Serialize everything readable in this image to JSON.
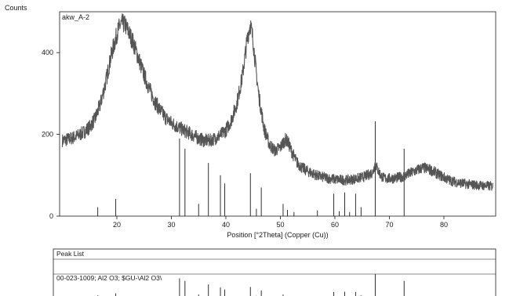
{
  "chart_data": [
    {
      "type": "line",
      "panel": "diffractogram",
      "ylabel": "Counts",
      "xlabel": "Position [°2Theta] (Copper (Cu))",
      "sample_label": "akw_A-2",
      "xlim": [
        9.5,
        89.5
      ],
      "ylim": [
        0,
        500
      ],
      "xticks": [
        20,
        30,
        40,
        50,
        60,
        70,
        80
      ],
      "yticks": [
        0,
        200,
        400
      ],
      "grid": false,
      "series": [
        {
          "values_x": [
            10,
            11,
            12,
            13,
            14,
            15,
            16,
            17,
            18,
            19,
            20,
            20.5,
            21,
            21.5,
            22,
            23,
            24,
            25,
            26,
            27,
            28,
            29,
            30,
            31,
            32,
            33,
            34,
            35,
            36,
            37,
            38,
            39,
            40,
            41,
            42,
            43,
            43.5,
            44,
            44.5,
            45,
            45.5,
            46,
            47,
            48,
            49,
            50,
            50.5,
            51,
            51.5,
            52,
            53,
            54,
            55,
            56,
            57,
            58,
            59,
            60,
            61,
            62,
            63,
            64,
            65,
            66,
            67,
            67.4,
            67.8,
            68.5,
            69,
            70,
            71,
            72,
            72.7,
            73,
            74,
            75,
            76,
            77,
            78,
            79,
            80,
            81,
            82,
            83,
            84,
            85,
            86,
            87,
            88,
            89
          ],
          "values_y": [
            185,
            188,
            192,
            198,
            206,
            218,
            238,
            275,
            330,
            395,
            445,
            465,
            472,
            468,
            455,
            425,
            385,
            345,
            310,
            280,
            258,
            240,
            228,
            220,
            212,
            205,
            198,
            190,
            185,
            185,
            190,
            198,
            210,
            235,
            275,
            340,
            390,
            440,
            470,
            430,
            360,
            300,
            215,
            175,
            160,
            168,
            180,
            188,
            178,
            160,
            132,
            118,
            110,
            104,
            98,
            95,
            92,
            90,
            89,
            88,
            90,
            92,
            95,
            100,
            108,
            130,
            115,
            98,
            93,
            92,
            93,
            95,
            98,
            100,
            106,
            112,
            118,
            116,
            110,
            102,
            95,
            88,
            84,
            81,
            79,
            77,
            76,
            75,
            74,
            73
          ]
        }
      ],
      "sticks": [
        {
          "x": 16.5,
          "y": 22
        },
        {
          "x": 19.8,
          "y": 42
        },
        {
          "x": 31.5,
          "y": 190
        },
        {
          "x": 32.5,
          "y": 165
        },
        {
          "x": 35.0,
          "y": 30
        },
        {
          "x": 36.8,
          "y": 130
        },
        {
          "x": 39.0,
          "y": 100
        },
        {
          "x": 39.8,
          "y": 80
        },
        {
          "x": 44.5,
          "y": 105
        },
        {
          "x": 45.6,
          "y": 18
        },
        {
          "x": 46.5,
          "y": 70
        },
        {
          "x": 50.5,
          "y": 30
        },
        {
          "x": 51.3,
          "y": 15
        },
        {
          "x": 52.5,
          "y": 10
        },
        {
          "x": 56.8,
          "y": 14
        },
        {
          "x": 59.8,
          "y": 55
        },
        {
          "x": 60.8,
          "y": 12
        },
        {
          "x": 61.8,
          "y": 58
        },
        {
          "x": 62.7,
          "y": 10
        },
        {
          "x": 63.8,
          "y": 55
        },
        {
          "x": 64.8,
          "y": 22
        },
        {
          "x": 67.4,
          "y": 232
        },
        {
          "x": 72.7,
          "y": 165
        }
      ]
    },
    {
      "type": "bar",
      "panel": "peak-list",
      "title": "Peak List",
      "reference_label": "00-023-1009; Al2 O3; $GU-\\Al2 O3\\"
    }
  ],
  "colors": {
    "trace": "#555555",
    "ink": "#1a1a1a",
    "background": "#ffffff"
  }
}
